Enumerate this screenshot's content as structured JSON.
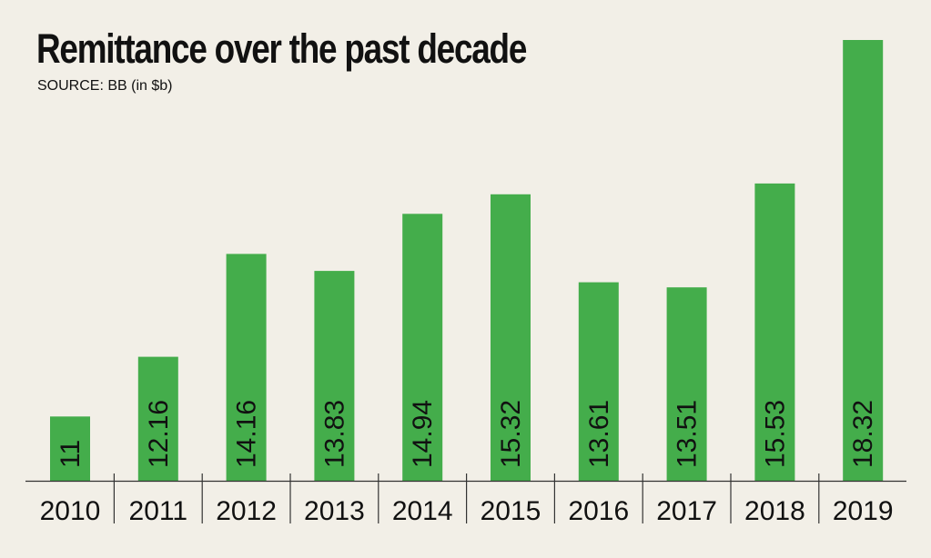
{
  "chart_data": {
    "type": "bar",
    "title": "Remittance over the past decade",
    "subtitle": "SOURCE: BB (in $b)",
    "categories": [
      "2010",
      "2011",
      "2012",
      "2013",
      "2014",
      "2015",
      "2016",
      "2017",
      "2018",
      "2019"
    ],
    "values": [
      11,
      12.16,
      14.16,
      13.83,
      14.94,
      15.32,
      13.61,
      13.51,
      15.53,
      18.32
    ],
    "value_labels": [
      "11",
      "12.16",
      "14.16",
      "13.83",
      "14.94",
      "15.32",
      "13.61",
      "13.51",
      "15.53",
      "18.32"
    ],
    "xlabel": "",
    "ylabel": "",
    "ylim": [
      9.75,
      18.32
    ],
    "grid": false,
    "legend": "none",
    "bar_color": "#44ad4b",
    "axis_color": "#333333"
  }
}
